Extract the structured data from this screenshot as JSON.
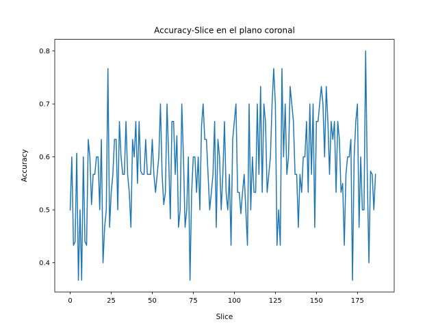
{
  "chart_data": {
    "type": "line",
    "title": "Accuracy-Slice en el plano coronal",
    "xlabel": "Slice",
    "ylabel": "Accuracy",
    "xlim": [
      -9.4,
      197.4
    ],
    "ylim": [
      0.345,
      0.822
    ],
    "xticks": [
      0,
      25,
      50,
      75,
      100,
      125,
      150,
      175
    ],
    "yticks": [
      0.4,
      0.5,
      0.6,
      0.7,
      0.8
    ],
    "ytick_labels": [
      "0.4",
      "0.5",
      "0.6",
      "0.7",
      "0.8"
    ],
    "grid": false,
    "legend": "none",
    "series": [
      {
        "color": "#1f77b4",
        "x_start": 0,
        "x_step": 1,
        "values": [
          0.5,
          0.6,
          0.433,
          0.44,
          0.607,
          0.367,
          0.5,
          0.367,
          0.6,
          0.44,
          0.433,
          0.633,
          0.6,
          0.51,
          0.567,
          0.567,
          0.6,
          0.6,
          0.5,
          0.633,
          0.4,
          0.467,
          0.5,
          0.767,
          0.467,
          0.533,
          0.567,
          0.633,
          0.633,
          0.5,
          0.667,
          0.6,
          0.567,
          0.567,
          0.667,
          0.567,
          0.533,
          0.467,
          0.633,
          0.6,
          0.667,
          0.55,
          0.667,
          0.573,
          0.567,
          0.567,
          0.633,
          0.567,
          0.567,
          0.567,
          0.633,
          0.567,
          0.533,
          0.567,
          0.6,
          0.7,
          0.567,
          0.51,
          0.533,
          0.7,
          0.6,
          0.483,
          0.667,
          0.667,
          0.567,
          0.64,
          0.467,
          0.5,
          0.7,
          0.6,
          0.467,
          0.5,
          0.6,
          0.367,
          0.533,
          0.6,
          0.6,
          0.533,
          0.6,
          0.5,
          0.657,
          0.7,
          0.633,
          0.633,
          0.567,
          0.5,
          0.533,
          0.567,
          0.667,
          0.467,
          0.633,
          0.6,
          0.5,
          0.567,
          0.667,
          0.533,
          0.5,
          0.567,
          0.433,
          0.633,
          0.667,
          0.7,
          0.533,
          0.533,
          0.493,
          0.533,
          0.567,
          0.5,
          0.433,
          0.7,
          0.5,
          0.6,
          0.533,
          0.533,
          0.7,
          0.567,
          0.733,
          0.533,
          0.7,
          0.667,
          0.533,
          0.567,
          0.6,
          0.7,
          0.767,
          0.7,
          0.433,
          0.5,
          0.433,
          0.767,
          0.6,
          0.7,
          0.567,
          0.6,
          0.733,
          0.7,
          0.667,
          0.567,
          0.567,
          0.467,
          0.567,
          0.533,
          0.6,
          0.6,
          0.667,
          0.533,
          0.7,
          0.567,
          0.7,
          0.467,
          0.667,
          0.667,
          0.7,
          0.733,
          0.7,
          0.6,
          0.733,
          0.667,
          0.567,
          0.667,
          0.633,
          0.667,
          0.533,
          0.667,
          0.633,
          0.533,
          0.55,
          0.433,
          0.567,
          0.6,
          0.6,
          0.633,
          0.367,
          0.6,
          0.667,
          0.7,
          0.467,
          0.6,
          0.5,
          0.5,
          0.8,
          0.567,
          0.4,
          0.573,
          0.567,
          0.5,
          0.567
        ]
      }
    ]
  }
}
